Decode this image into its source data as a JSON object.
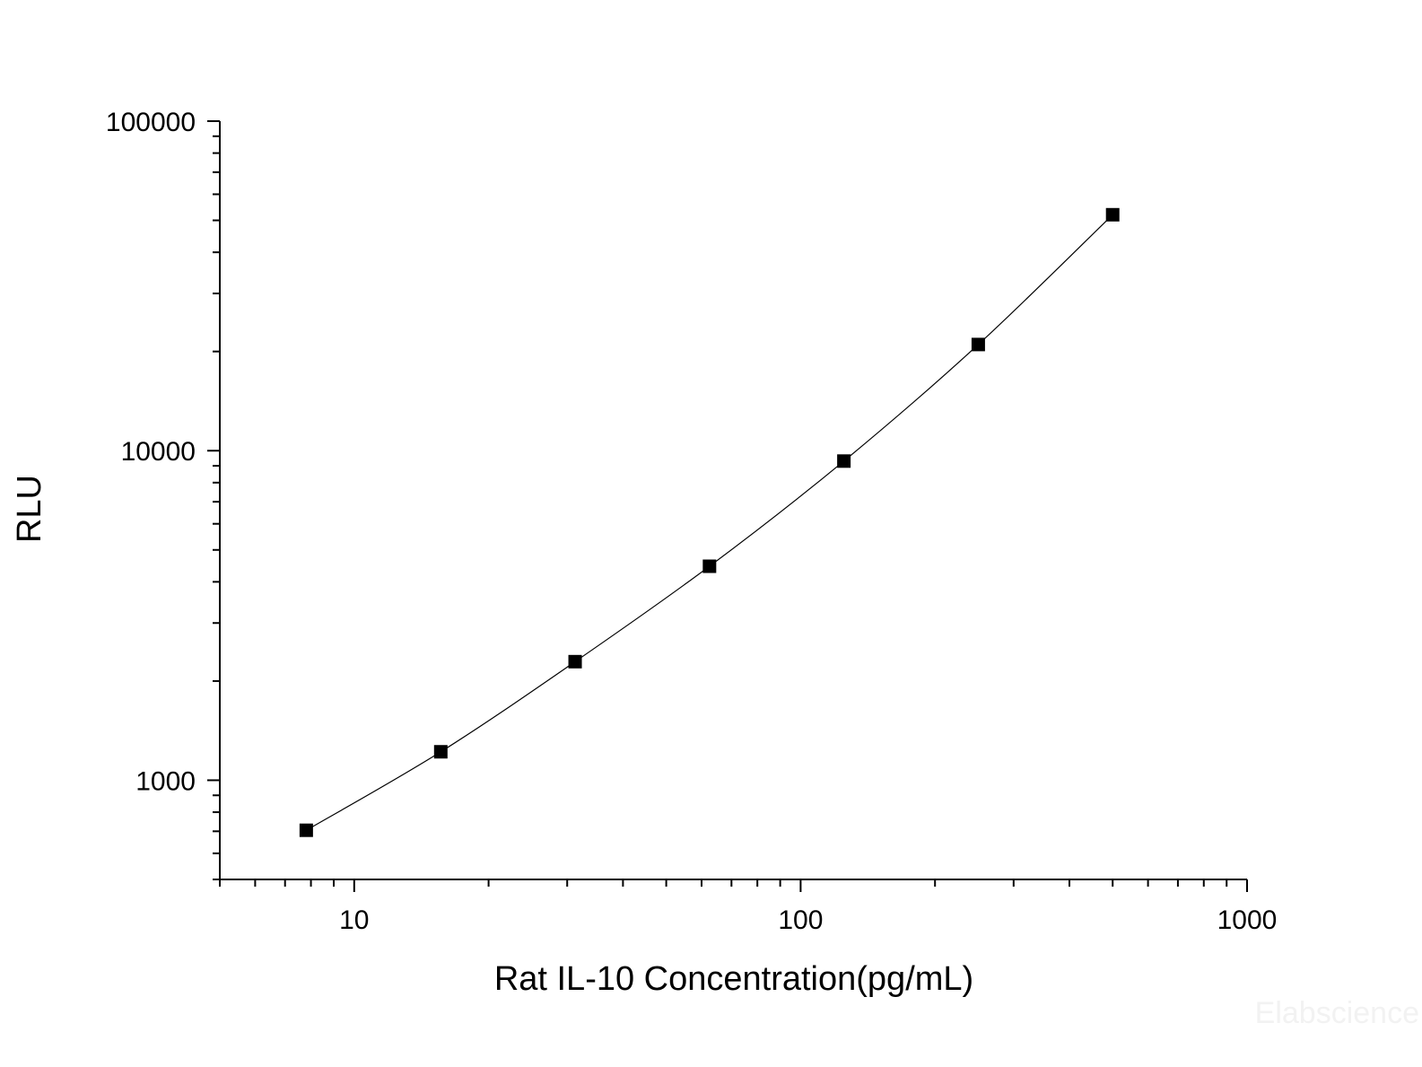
{
  "chart_data": {
    "type": "scatter",
    "title": "",
    "xlabel": "Rat IL-10 Concentration(pg/mL)",
    "ylabel": "RLU",
    "x_scale": "log",
    "y_scale": "log",
    "xlim": [
      5,
      1000
    ],
    "ylim": [
      500,
      100000
    ],
    "x_ticks": [
      {
        "value": 10,
        "label": "10"
      },
      {
        "value": 100,
        "label": "100"
      },
      {
        "value": 1000,
        "label": "1000"
      }
    ],
    "y_ticks": [
      {
        "value": 1000,
        "label": "1000"
      },
      {
        "value": 10000,
        "label": "10000"
      },
      {
        "value": 100000,
        "label": "100000"
      }
    ],
    "grid": false,
    "legend": "none",
    "series": [
      {
        "x": [
          7.81,
          15.63,
          31.25,
          62.5,
          125,
          250,
          500
        ],
        "y": [
          705,
          1220,
          2290,
          4460,
          9300,
          21000,
          52000
        ],
        "marker": "square",
        "line": "smooth",
        "color": "#000000"
      }
    ]
  },
  "watermark": "Elabscience"
}
